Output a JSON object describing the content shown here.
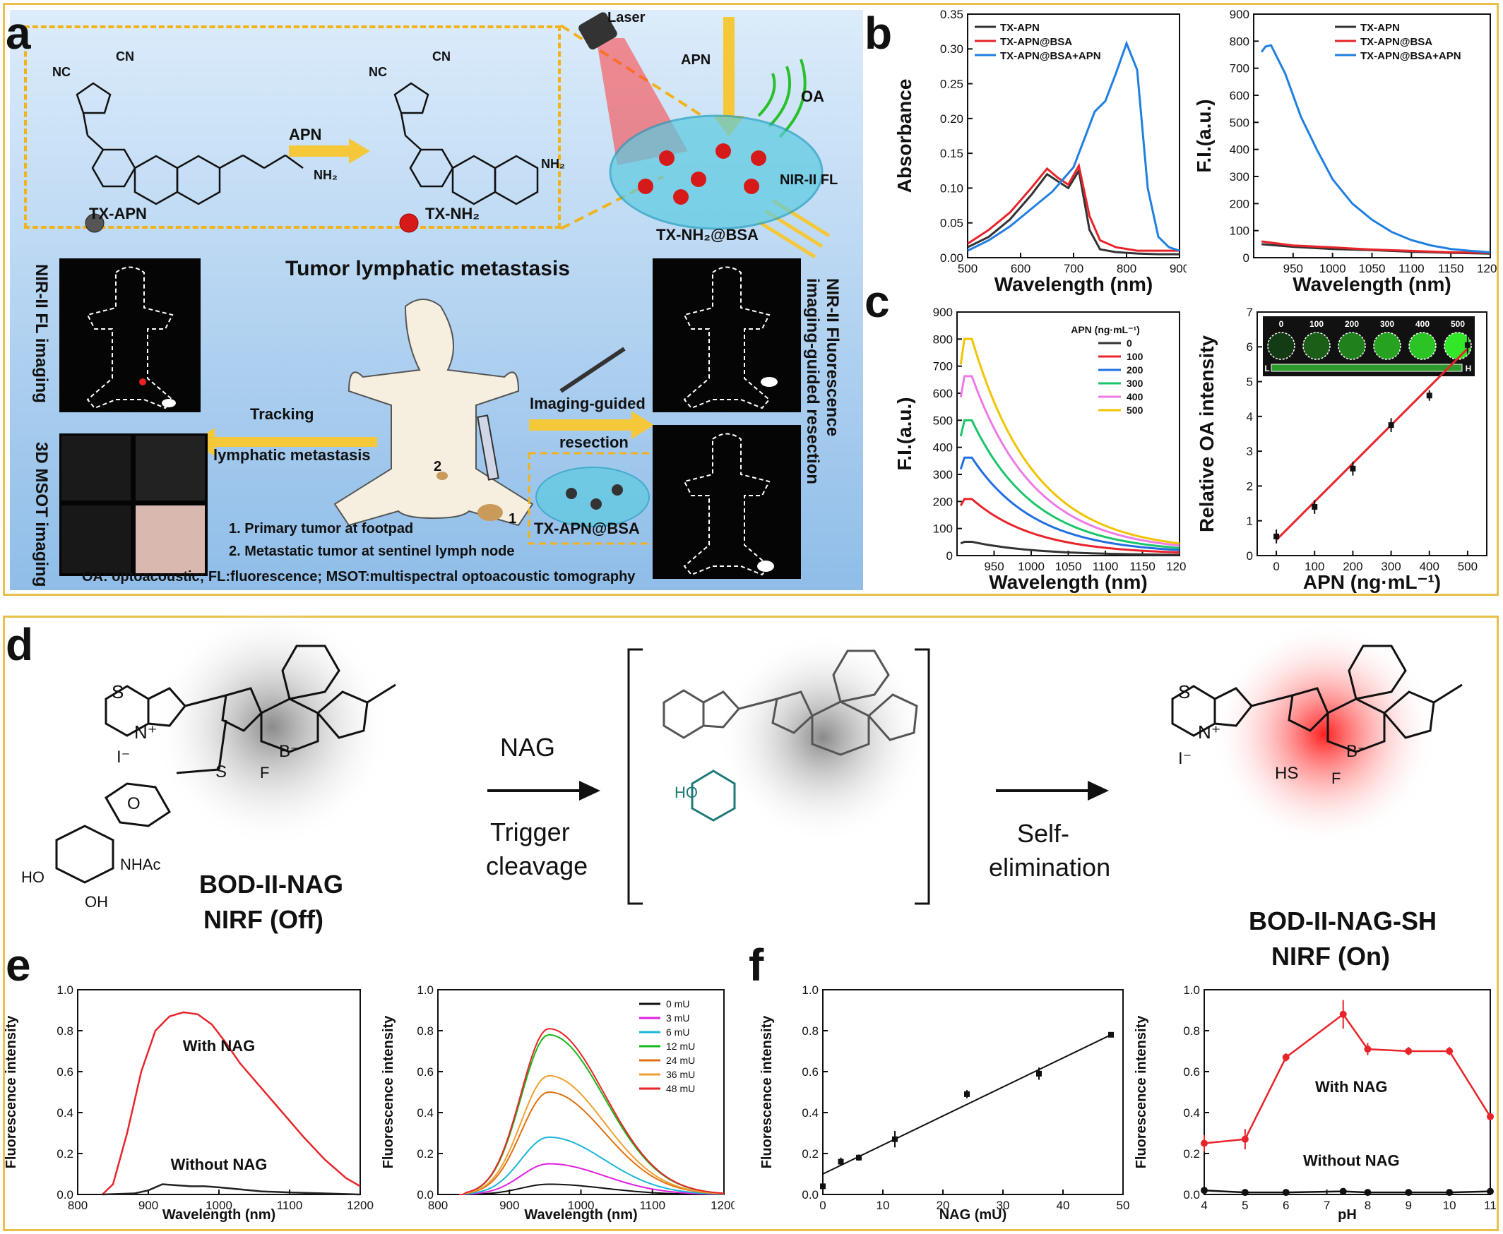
{
  "panels": {
    "a": "a",
    "b": "b",
    "c": "c",
    "d": "d",
    "e": "e",
    "f": "f"
  },
  "schema": {
    "tx_apn": "TX-APN",
    "tx_nh2": "TX-NH₂",
    "apn": "APN",
    "laser": "Laser",
    "apn2": "APN",
    "oa": "OA",
    "nir_fl": "NIR-II FL",
    "tx_nh2_bsa": "TX-NH₂@BSA",
    "tumor_title": "Tumor lymphatic metastasis",
    "nir_fl_imaging": "NIR-II FL imaging",
    "msot_imaging": "3D MSOT imaging",
    "tracking": "Tracking",
    "lymphatic": "lymphatic metastasis",
    "imaging_guided": "Imaging-guided",
    "resection": "resection",
    "tx_apn_bsa": "TX-APN@BSA",
    "nir_fluor_side1": "NIR-II Fluorescence",
    "nir_fluor_side2": "imaging-guided resection",
    "note1": "1. Primary tumor at footpad",
    "note2": "2. Metastatic tumor at sentinel lymph node",
    "num1": "1",
    "num2": "2",
    "footer": "OA: optoacoustic; FL:fluorescence; MSOT:multispectral optoacoustic tomography",
    "chem": {
      "cn": "CN",
      "nc": "NC",
      "nh2": "NH₂",
      "h": "H",
      "n": "N",
      "o": "O"
    }
  },
  "scheme_d": {
    "nag": "NAG",
    "trigger": "Trigger",
    "cleavage": "cleavage",
    "self": "Self-",
    "elimination": "elimination",
    "bod_off_name": "BOD-II-NAG",
    "bod_off_state": "NIRF (Off)",
    "bod_on_name": "BOD-II-NAG-SH",
    "bod_on_state": "NIRF (On)",
    "atoms": {
      "s": "S",
      "n": "N",
      "nplus": "N⁺",
      "b": "B",
      "bminus": "B⁻",
      "f": "F",
      "i": "I⁻",
      "o": "O",
      "nhac": "NHAc",
      "ho": "HO",
      "oh": "OH",
      "hs": "HS"
    }
  },
  "chart_data": [
    {
      "id": "b1",
      "type": "line",
      "xlabel": "Wavelength (nm)",
      "ylabel": "Absorbance",
      "xlim": [
        500,
        900
      ],
      "ylim": [
        0,
        0.35
      ],
      "xticks": [
        500,
        600,
        700,
        800,
        900
      ],
      "yticks": [
        0.0,
        0.05,
        0.1,
        0.15,
        0.2,
        0.25,
        0.3,
        0.35
      ],
      "legend": "top-left",
      "series": [
        {
          "name": "TX-APN",
          "color": "#333333",
          "x": [
            500,
            540,
            580,
            620,
            650,
            670,
            690,
            710,
            730,
            750,
            780,
            820,
            860,
            900
          ],
          "y": [
            0.015,
            0.03,
            0.055,
            0.09,
            0.12,
            0.11,
            0.1,
            0.125,
            0.04,
            0.012,
            0.008,
            0.006,
            0.005,
            0.005
          ]
        },
        {
          "name": "TX-APN@BSA",
          "color": "#e8242a",
          "x": [
            500,
            540,
            580,
            620,
            650,
            670,
            690,
            710,
            730,
            750,
            780,
            820,
            860,
            900
          ],
          "y": [
            0.02,
            0.04,
            0.065,
            0.1,
            0.128,
            0.115,
            0.105,
            0.132,
            0.06,
            0.025,
            0.015,
            0.01,
            0.01,
            0.01
          ]
        },
        {
          "name": "TX-APN@BSA+APN",
          "color": "#1f7fe0",
          "x": [
            500,
            540,
            580,
            620,
            660,
            700,
            720,
            740,
            760,
            780,
            800,
            820,
            840,
            860,
            880,
            900
          ],
          "y": [
            0.01,
            0.025,
            0.045,
            0.07,
            0.095,
            0.13,
            0.17,
            0.21,
            0.225,
            0.265,
            0.308,
            0.27,
            0.1,
            0.03,
            0.015,
            0.01
          ]
        }
      ]
    },
    {
      "id": "b2",
      "type": "line",
      "xlabel": "Wavelength (nm)",
      "ylabel": "F.I.(a.u.)",
      "xlim": [
        900,
        1200
      ],
      "ylim": [
        0,
        900
      ],
      "xticks": [
        950,
        1000,
        1050,
        1100,
        1150,
        1200
      ],
      "yticks": [
        0,
        100,
        200,
        300,
        400,
        500,
        600,
        700,
        800,
        900
      ],
      "legend": "top-right",
      "series": [
        {
          "name": "TX-APN",
          "color": "#333333",
          "x": [
            910,
            950,
            1000,
            1050,
            1100,
            1150,
            1200
          ],
          "y": [
            50,
            40,
            32,
            28,
            22,
            18,
            15
          ]
        },
        {
          "name": "TX-APN@BSA",
          "color": "#e8242a",
          "x": [
            910,
            950,
            1000,
            1050,
            1100,
            1150,
            1200
          ],
          "y": [
            60,
            45,
            38,
            30,
            25,
            20,
            18
          ]
        },
        {
          "name": "TX-APN@BSA+APN",
          "color": "#1f7fe0",
          "x": [
            910,
            915,
            922,
            940,
            960,
            980,
            1000,
            1025,
            1050,
            1075,
            1100,
            1125,
            1150,
            1175,
            1200
          ],
          "y": [
            760,
            780,
            785,
            680,
            520,
            400,
            290,
            200,
            140,
            95,
            65,
            45,
            32,
            25,
            20
          ]
        }
      ]
    },
    {
      "id": "c1",
      "type": "line",
      "xlabel": "Wavelength (nm)",
      "ylabel": "F.I.(a.u.)",
      "legend_title": "APN (ng·mL⁻¹)",
      "xlim": [
        900,
        1200
      ],
      "ylim": [
        0,
        900
      ],
      "xticks": [
        950,
        1000,
        1050,
        1100,
        1150,
        1200
      ],
      "yticks": [
        0,
        100,
        200,
        300,
        400,
        500,
        600,
        700,
        800,
        900
      ],
      "legend": "top-right",
      "series": [
        {
          "name": "0",
          "color": "#333333",
          "peak": 50
        },
        {
          "name": "100",
          "color": "#e8242a",
          "peak": 205
        },
        {
          "name": "200",
          "color": "#1f6fe0",
          "peak": 355
        },
        {
          "name": "300",
          "color": "#1bc46a",
          "peak": 490
        },
        {
          "name": "400",
          "color": "#ee7ae8",
          "peak": 650
        },
        {
          "name": "500",
          "color": "#f0c400",
          "peak": 785
        }
      ]
    },
    {
      "id": "c2",
      "type": "scatter",
      "xlabel": "APN (ng·mL⁻¹)",
      "ylabel": "Relative OA intensity",
      "xlim": [
        -50,
        550
      ],
      "ylim": [
        0,
        7
      ],
      "xticks": [
        0,
        100,
        200,
        300,
        400,
        500
      ],
      "yticks": [
        0,
        1,
        2,
        3,
        4,
        5,
        6,
        7
      ],
      "inset_labels": [
        "0",
        "100",
        "200",
        "300",
        "400",
        "500"
      ],
      "inset_scale": {
        "low": "L",
        "high": "H"
      },
      "x": [
        0,
        100,
        200,
        300,
        400,
        500
      ],
      "y": [
        0.55,
        1.4,
        2.5,
        3.75,
        4.6,
        6.05
      ],
      "err": [
        0.2,
        0.2,
        0.2,
        0.2,
        0.15,
        0.25
      ],
      "fit": [
        [
          0,
          0.45
        ],
        [
          500,
          5.95
        ]
      ]
    },
    {
      "id": "e1",
      "type": "line",
      "xlabel": "Wavelength (nm)",
      "ylabel": "Fluorescence intensity",
      "xlim": [
        800,
        1200
      ],
      "ylim": [
        0,
        1.0
      ],
      "xticks": [
        800,
        900,
        1000,
        1100,
        1200
      ],
      "yticks": [
        0.0,
        0.2,
        0.4,
        0.6,
        0.8,
        1.0
      ],
      "annotations": [
        "With NAG",
        "Without NAG"
      ],
      "series": [
        {
          "name": "With NAG",
          "color": "#e8242a",
          "x": [
            835,
            850,
            870,
            890,
            910,
            930,
            950,
            970,
            990,
            1010,
            1030,
            1060,
            1090,
            1120,
            1150,
            1180,
            1200
          ],
          "y": [
            0.0,
            0.05,
            0.3,
            0.6,
            0.8,
            0.87,
            0.89,
            0.88,
            0.83,
            0.74,
            0.64,
            0.52,
            0.4,
            0.28,
            0.17,
            0.08,
            0.04
          ]
        },
        {
          "name": "Without NAG",
          "color": "#222222",
          "x": [
            835,
            880,
            900,
            920,
            940,
            960,
            980,
            1000,
            1030,
            1060,
            1100,
            1150,
            1200
          ],
          "y": [
            0.0,
            0.005,
            0.02,
            0.05,
            0.045,
            0.04,
            0.04,
            0.035,
            0.025,
            0.015,
            0.01,
            0.005,
            0.0
          ]
        }
      ]
    },
    {
      "id": "e2",
      "type": "line",
      "xlabel": "Wavelength (nm)",
      "ylabel": "Fluorescence intensity",
      "xlim": [
        800,
        1200
      ],
      "ylim": [
        0,
        1.0
      ],
      "xticks": [
        800,
        900,
        1000,
        1100,
        1200
      ],
      "yticks": [
        0.0,
        0.2,
        0.4,
        0.6,
        0.8,
        1.0
      ],
      "legend": "top-right",
      "series": [
        {
          "name": "0 mU",
          "color": "#111111",
          "peak": 0.05
        },
        {
          "name": "3 mU",
          "color": "#e020e0",
          "peak": 0.15
        },
        {
          "name": "6 mU",
          "color": "#1ab6d8",
          "peak": 0.28
        },
        {
          "name": "12 mU",
          "color": "#18b818",
          "peak": 0.78
        },
        {
          "name": "24 mU",
          "color": "#e07010",
          "peak": 0.5
        },
        {
          "name": "36 mU",
          "color": "#f0a030",
          "peak": 0.58
        },
        {
          "name": "48 mU",
          "color": "#e8242a",
          "peak": 0.81
        }
      ]
    },
    {
      "id": "f1",
      "type": "scatter",
      "xlabel": "NAG (mU)",
      "ylabel": "Fluorescence intensity",
      "xlim": [
        0,
        50
      ],
      "ylim": [
        0,
        1.0
      ],
      "xticks": [
        0,
        10,
        20,
        30,
        40,
        50
      ],
      "yticks": [
        0.0,
        0.2,
        0.4,
        0.6,
        0.8,
        1.0
      ],
      "x": [
        0,
        3,
        6,
        12,
        24,
        36,
        48
      ],
      "y": [
        0.04,
        0.16,
        0.18,
        0.27,
        0.49,
        0.59,
        0.78
      ],
      "err": [
        0.01,
        0.02,
        0.015,
        0.04,
        0.02,
        0.03,
        0.01
      ],
      "fit": [
        [
          0,
          0.1
        ],
        [
          48,
          0.78
        ]
      ]
    },
    {
      "id": "f2",
      "type": "line",
      "xlabel": "pH",
      "ylabel": "Fluorescence intensity",
      "xlim": [
        4,
        11
      ],
      "ylim": [
        0,
        1.0
      ],
      "xticks": [
        4,
        5,
        6,
        7,
        8,
        9,
        10,
        11
      ],
      "yticks": [
        0.0,
        0.2,
        0.4,
        0.6,
        0.8,
        1.0
      ],
      "annotations": [
        "With NAG",
        "Without NAG"
      ],
      "series": [
        {
          "name": "With NAG",
          "color": "#e8242a",
          "x": [
            4,
            5,
            6,
            7.4,
            8,
            9,
            10,
            11
          ],
          "y": [
            0.25,
            0.27,
            0.67,
            0.88,
            0.71,
            0.7,
            0.7,
            0.38
          ],
          "err": [
            0.04,
            0.05,
            0.02,
            0.07,
            0.03,
            0.02,
            0.02,
            0.01
          ]
        },
        {
          "name": "Without NAG",
          "color": "#111111",
          "x": [
            4,
            5,
            6,
            7.4,
            8,
            9,
            10,
            11
          ],
          "y": [
            0.02,
            0.01,
            0.01,
            0.015,
            0.01,
            0.01,
            0.01,
            0.015
          ],
          "err": [
            0,
            0,
            0,
            0,
            0,
            0,
            0,
            0
          ]
        }
      ]
    }
  ]
}
